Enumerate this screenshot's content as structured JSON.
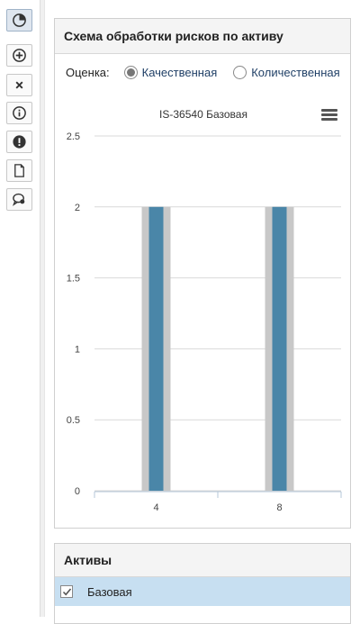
{
  "toolbar": {
    "buttons": [
      {
        "icon": "pie-chart-icon",
        "active": true
      },
      {
        "icon": "add-circle-icon",
        "active": false
      },
      {
        "icon": "close-icon",
        "active": false
      },
      {
        "icon": "info-icon",
        "active": false
      },
      {
        "icon": "alert-icon",
        "active": false
      },
      {
        "icon": "document-icon",
        "active": false
      },
      {
        "icon": "chat-search-icon",
        "active": false
      }
    ]
  },
  "risk_panel": {
    "title": "Схема обработки рисков по активу",
    "rating_label": "Оценка:",
    "options": [
      {
        "label": "Качественная",
        "selected": true
      },
      {
        "label": "Количественная",
        "selected": false
      }
    ]
  },
  "chart_data": {
    "type": "bar",
    "title": "IS-36540 Базовая",
    "categories": [
      "4",
      "8"
    ],
    "values": [
      2,
      2
    ],
    "ylim": [
      0,
      2.5
    ],
    "yticks": [
      "0",
      "0.5",
      "1",
      "1.5",
      "2",
      "2.5"
    ],
    "grid": true,
    "bar_color": "#4a86a8",
    "bar_bg_color": "#c8c8c8"
  },
  "assets_panel": {
    "title": "Активы",
    "rows": [
      {
        "label": "Базовая",
        "checked": true
      }
    ]
  }
}
